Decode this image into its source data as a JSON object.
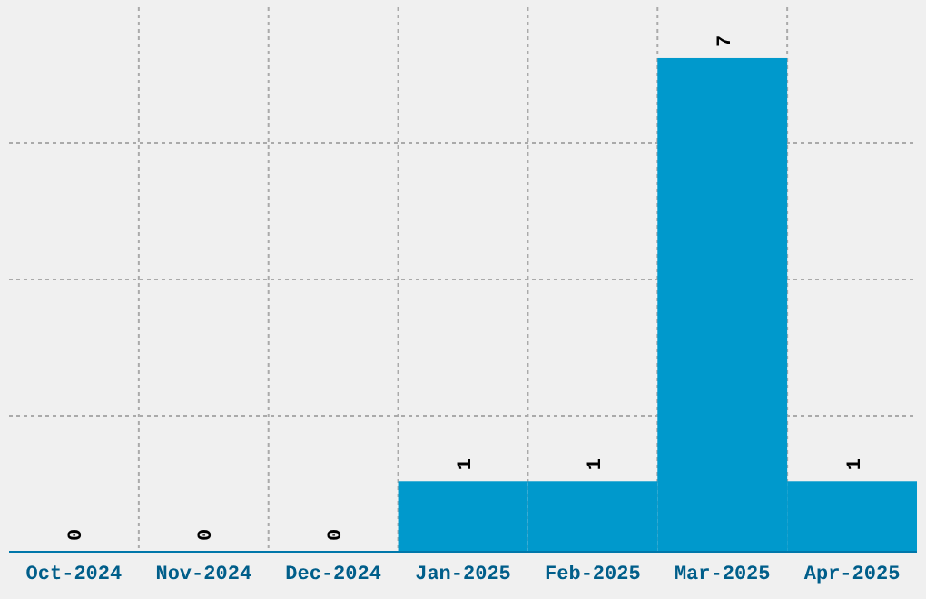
{
  "chart_data": {
    "type": "bar",
    "categories": [
      "Oct-2024",
      "Nov-2024",
      "Dec-2024",
      "Jan-2025",
      "Feb-2025",
      "Mar-2025",
      "Apr-2025"
    ],
    "values": [
      0,
      0,
      0,
      1,
      1,
      7,
      1
    ],
    "color": "#0099cc",
    "data_labels": true,
    "grid": true,
    "tick_labels": "x",
    "ylim": [
      0,
      7.72
    ],
    "yticks": [
      {
        "value": 0,
        "label": null
      },
      {
        "value": 1.93,
        "label": null
      },
      {
        "value": 3.86,
        "label": null
      },
      {
        "value": 5.79,
        "label": null
      }
    ]
  }
}
